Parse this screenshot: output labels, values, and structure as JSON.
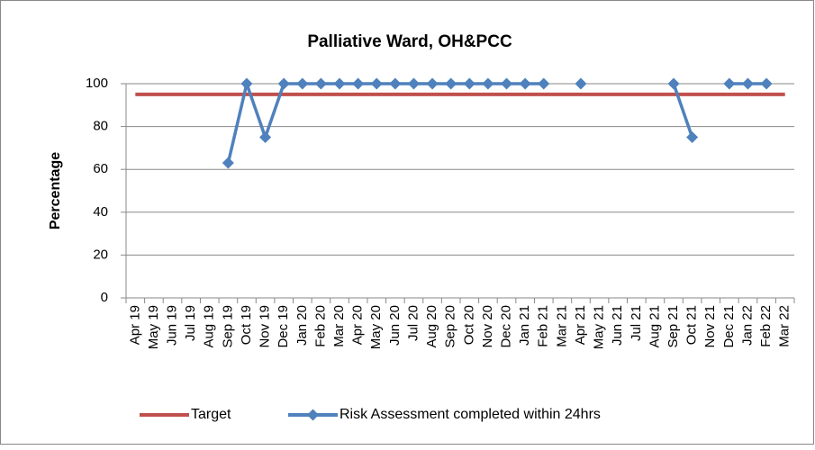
{
  "chart_data": {
    "type": "line",
    "title": "Palliative Ward, OH&PCC",
    "y_label": "Percentage",
    "categories": [
      "Apr 19",
      "May 19",
      "Jun 19",
      "Jul 19",
      "Aug 19",
      "Sep 19",
      "Oct 19",
      "Nov 19",
      "Dec 19",
      "Jan 20",
      "Feb 20",
      "Mar 20",
      "Apr 20",
      "May 20",
      "Jun 20",
      "Jul 20",
      "Aug 20",
      "Sep 20",
      "Oct 20",
      "Nov 20",
      "Dec 20",
      "Jan 21",
      "Feb 21",
      "Mar 21",
      "Apr 21",
      "May 21",
      "Jun 21",
      "Jul 21",
      "Aug 21",
      "Sep 21",
      "Oct 21",
      "Nov 21",
      "Dec 21",
      "Jan 22",
      "Feb 22",
      "Mar 22"
    ],
    "series": [
      {
        "name": "Target",
        "color": "#c0504d",
        "values": [
          95,
          95,
          95,
          95,
          95,
          95,
          95,
          95,
          95,
          95,
          95,
          95,
          95,
          95,
          95,
          95,
          95,
          95,
          95,
          95,
          95,
          95,
          95,
          95,
          95,
          95,
          95,
          95,
          95,
          95,
          95,
          95,
          95,
          95,
          95,
          95
        ]
      },
      {
        "name": "Risk Assessment completed within 24hrs",
        "color": "#4f81bd",
        "marker": "diamond",
        "values": [
          null,
          null,
          null,
          null,
          null,
          63,
          100,
          75,
          100,
          100,
          100,
          100,
          100,
          100,
          100,
          100,
          100,
          100,
          100,
          100,
          100,
          100,
          100,
          null,
          100,
          null,
          null,
          null,
          null,
          100,
          75,
          null,
          100,
          100,
          100,
          null
        ]
      }
    ],
    "ylim": [
      0,
      100
    ],
    "yticks": [
      0,
      20,
      40,
      60,
      80,
      100
    ],
    "grid": true,
    "legend": "bottom"
  }
}
